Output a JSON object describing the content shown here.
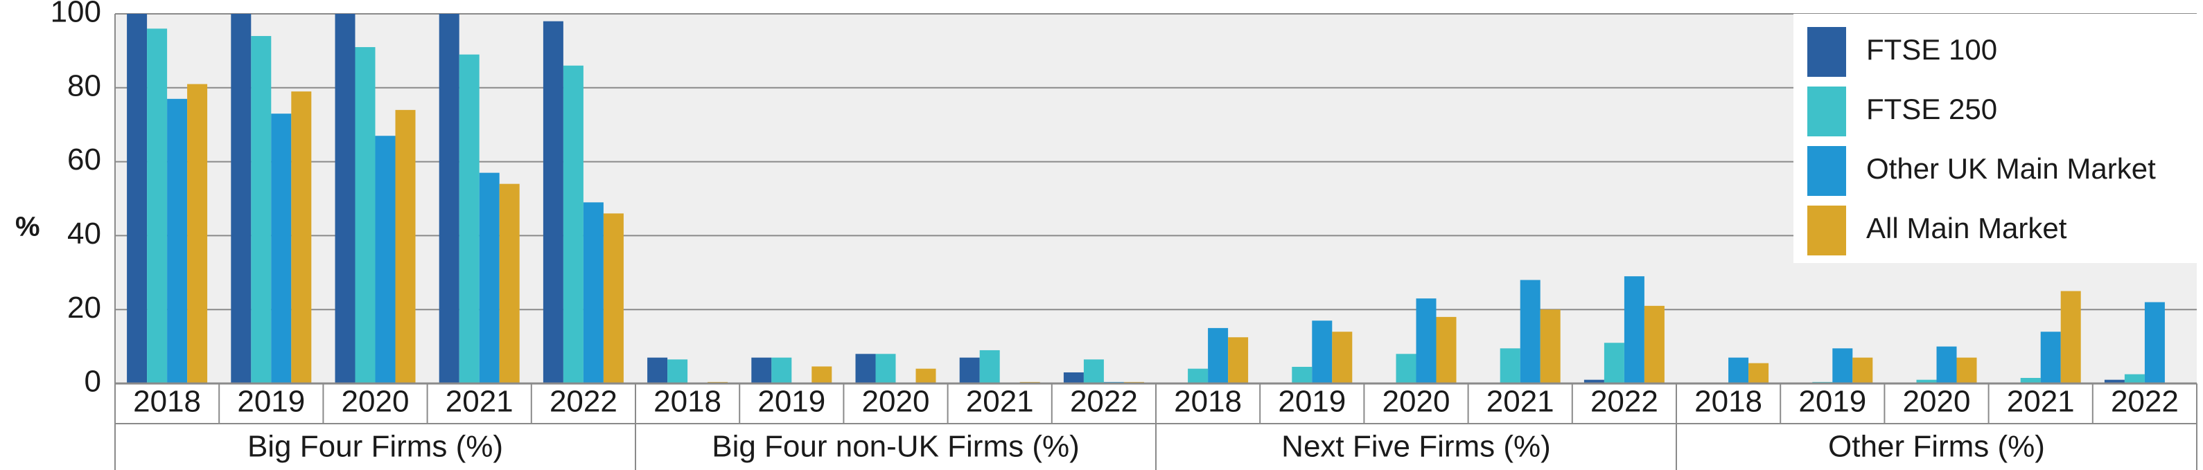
{
  "chart_data": {
    "type": "bar",
    "y_label": "%",
    "groups": [
      "Big Four Firms (%)",
      "Big Four non-UK Firms (%)",
      "Next Five Firms (%)",
      "Other Firms (%)"
    ],
    "categories": [
      "2018",
      "2019",
      "2020",
      "2021",
      "2022",
      "2018",
      "2019",
      "2020",
      "2021",
      "2022",
      "2018",
      "2019",
      "2020",
      "2021",
      "2022",
      "2018",
      "2019",
      "2020",
      "2021",
      "2022"
    ],
    "series": [
      {
        "name": "FTSE 100",
        "color": "#2a5fa0",
        "values": [
          100,
          100,
          100,
          100,
          98,
          7,
          7,
          8,
          7,
          3,
          0,
          0,
          0,
          0,
          1,
          0,
          0,
          0,
          0,
          1
        ]
      },
      {
        "name": "FTSE 250",
        "color": "#3fc1c9",
        "values": [
          96,
          94,
          91,
          89,
          86,
          6.5,
          7,
          8,
          9,
          6.5,
          4,
          4.5,
          8,
          9.5,
          11,
          0,
          0.4,
          1,
          1.5,
          2.5
        ]
      },
      {
        "name": "Other UK Main Market",
        "color": "#2196d3",
        "values": [
          77,
          73,
          67,
          57,
          49,
          0,
          0,
          0,
          0,
          0.4,
          15,
          17,
          23,
          28,
          29,
          7,
          9.5,
          10,
          14,
          22
        ]
      },
      {
        "name": "All Main Market",
        "color": "#d9a62a",
        "values": [
          81,
          79,
          74,
          54,
          46,
          0.4,
          4.6,
          4,
          0.4,
          0.4,
          12.5,
          14,
          18,
          20,
          21,
          5.5,
          7,
          7,
          25,
          null
        ]
      }
    ],
    "ylim": [
      0,
      100
    ],
    "yticks": [
      0,
      20,
      40,
      60,
      80,
      100
    ],
    "grid": true,
    "legend": "top-right"
  }
}
